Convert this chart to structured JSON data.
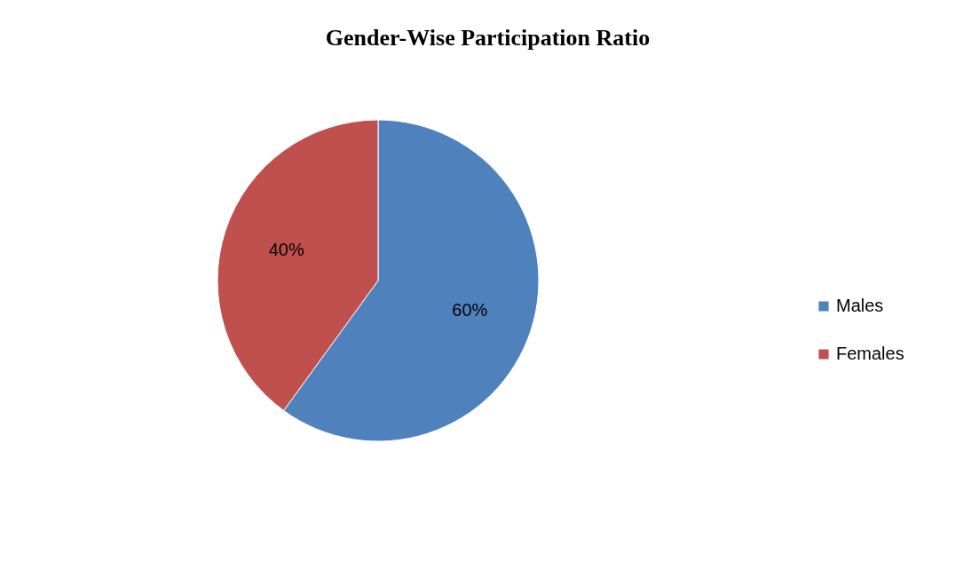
{
  "chart_data": {
    "type": "pie",
    "title": "Gender-Wise Participation Ratio",
    "categories": [
      "Males",
      "Females"
    ],
    "values": [
      60,
      40
    ],
    "colors": [
      "#4f81bd",
      "#c0504d"
    ],
    "value_labels": [
      "60%",
      "40%"
    ],
    "legend": "right"
  }
}
